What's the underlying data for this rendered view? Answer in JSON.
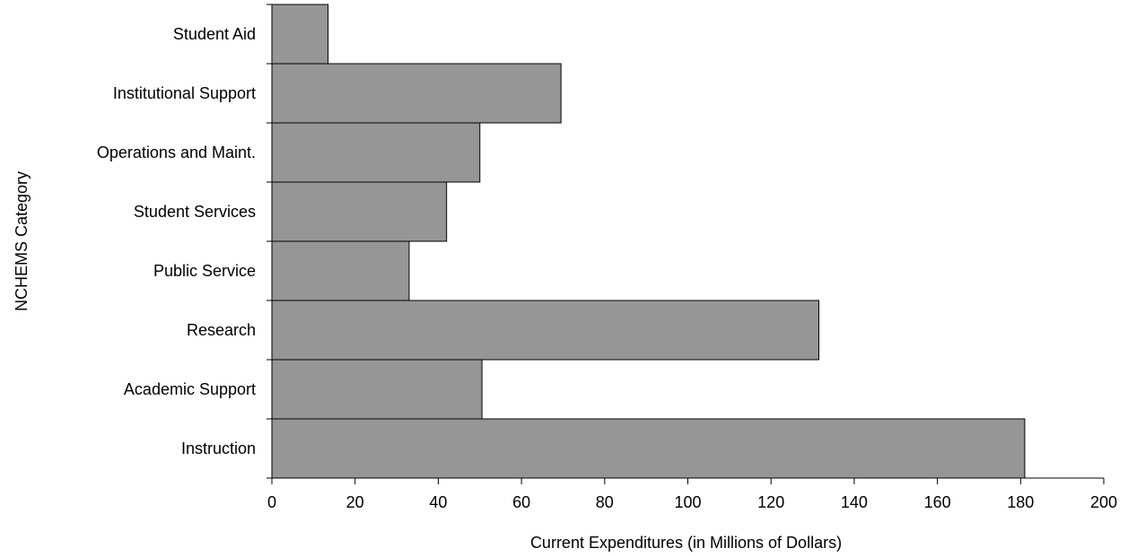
{
  "chart_data": {
    "type": "bar",
    "orientation": "horizontal",
    "title": "",
    "xlabel": "Current Expenditures (in Millions of Dollars)",
    "ylabel": "NCHEMS Category",
    "categories": [
      "Student Aid",
      "Institutional Support",
      "Operations and Maint.",
      "Student Services",
      "Public Service",
      "Research",
      "Academic Support",
      "Instruction"
    ],
    "values": [
      13.5,
      69.5,
      50,
      42,
      33,
      131.5,
      50.5,
      181
    ],
    "xlim": [
      0,
      200
    ],
    "xticks": [
      0,
      20,
      40,
      60,
      80,
      100,
      120,
      140,
      160,
      180,
      200
    ],
    "grid": false,
    "legend": "none",
    "bar_color": "#969696",
    "bar_edge_color": "#000000"
  }
}
